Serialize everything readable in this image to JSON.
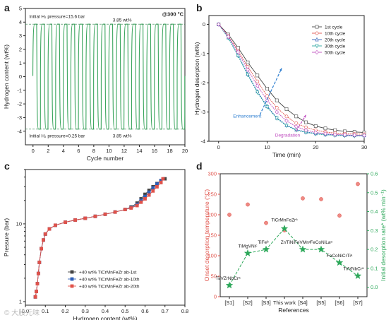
{
  "panels": [
    {
      "letter": "a",
      "chart_data": {
        "type": "line",
        "xlabel": "Cycle number",
        "ylabel": "Hydrogen content (wt%)",
        "xlim": [
          -1,
          20
        ],
        "ylim": [
          -5,
          5
        ],
        "xticks": [
          0,
          2,
          4,
          6,
          8,
          10,
          12,
          14,
          16,
          18,
          20
        ],
        "yticks": [
          -4,
          -3,
          -2,
          -1,
          0,
          1,
          2,
          3,
          4,
          5
        ],
        "series_color": "#3aa55d",
        "absorption_level": 3.85,
        "desorption_level": -3.85,
        "cycles": 20,
        "annotations": [
          {
            "text": "Initial H₂ pressure=15.6 bar",
            "x": -0.5,
            "y": 4.3
          },
          {
            "text": "3.85 wt%",
            "x": 10.5,
            "y": 4.05
          },
          {
            "text": "@300 °C",
            "x": 17.0,
            "y": 4.45
          },
          {
            "text": "Initial H₂ pressure=0.25 bar",
            "x": -0.5,
            "y": -4.45
          },
          {
            "text": "3.85 wt%",
            "x": 10.5,
            "y": -4.45
          }
        ]
      }
    },
    {
      "letter": "b",
      "chart_data": {
        "type": "line",
        "xlabel": "Time (min)",
        "ylabel": "Hydrogen desorption (wt%)",
        "xlim": [
          -2,
          30
        ],
        "ylim": [
          -4,
          0.3
        ],
        "xticks": [
          0,
          10,
          20,
          30
        ],
        "yticks": [
          -4,
          -3,
          -2,
          -1,
          0
        ],
        "legend_position": "top-right",
        "series": [
          {
            "name": "1st  cycle",
            "color": "#444444",
            "marker": "square",
            "x": [
              0,
              2,
              4,
              6,
              8,
              10,
              12,
              14,
              16,
              18,
              20,
              22,
              24,
              26,
              28,
              30
            ],
            "y": [
              0,
              -0.35,
              -0.8,
              -1.3,
              -1.75,
              -2.2,
              -2.6,
              -2.9,
              -3.15,
              -3.35,
              -3.48,
              -3.56,
              -3.62,
              -3.66,
              -3.68,
              -3.7
            ]
          },
          {
            "name": "10th cycle",
            "color": "#e0524a",
            "marker": "circle",
            "x": [
              0,
              2,
              4,
              6,
              8,
              10,
              12,
              14,
              16,
              18,
              20,
              22,
              24,
              26,
              28,
              30
            ],
            "y": [
              0,
              -0.4,
              -0.9,
              -1.45,
              -1.95,
              -2.45,
              -2.85,
              -3.15,
              -3.38,
              -3.52,
              -3.62,
              -3.68,
              -3.72,
              -3.74,
              -3.75,
              -3.76
            ]
          },
          {
            "name": "20th cycle",
            "color": "#2f5fb8",
            "marker": "triangle",
            "x": [
              0,
              2,
              4,
              6,
              8,
              10,
              12,
              14,
              16,
              18,
              20,
              22,
              24,
              26,
              28,
              30
            ],
            "y": [
              0,
              -0.45,
              -1.05,
              -1.7,
              -2.3,
              -2.8,
              -3.2,
              -3.45,
              -3.6,
              -3.68,
              -3.73,
              -3.76,
              -3.78,
              -3.79,
              -3.8,
              -3.8
            ]
          },
          {
            "name": "30th cycle",
            "color": "#2aa6a0",
            "marker": "triangle-down",
            "x": [
              0,
              2,
              4,
              6,
              8,
              10,
              12,
              14,
              16,
              18,
              20,
              22,
              24,
              26,
              28,
              30
            ],
            "y": [
              0,
              -0.47,
              -1.08,
              -1.73,
              -2.33,
              -2.83,
              -3.22,
              -3.47,
              -3.62,
              -3.7,
              -3.75,
              -3.78,
              -3.8,
              -3.81,
              -3.82,
              -3.82
            ]
          },
          {
            "name": "50th cycle",
            "color": "#c04fc0",
            "marker": "diamond",
            "x": [
              0,
              2,
              4,
              6,
              8,
              10,
              12,
              14,
              16,
              18,
              20,
              22,
              24,
              26,
              28,
              30
            ],
            "y": [
              0,
              -0.42,
              -0.95,
              -1.55,
              -2.1,
              -2.6,
              -3.0,
              -3.3,
              -3.5,
              -3.62,
              -3.7,
              -3.74,
              -3.77,
              -3.78,
              -3.79,
              -3.8
            ]
          }
        ],
        "annotations": [
          {
            "text": "Enhancement",
            "color": "#2f7fd0",
            "arrow_from": [
              8.5,
              -3.1
            ],
            "arrow_to": [
              13.0,
              -1.5
            ]
          },
          {
            "text": "Degradation",
            "color": "#c04fc0",
            "arrow_from": [
              16.0,
              -3.65
            ],
            "arrow_to": [
              18.0,
              -3.1
            ]
          }
        ]
      }
    },
    {
      "letter": "c",
      "chart_data": {
        "type": "scatter",
        "xlabel": "Hydrogen content (wt%)",
        "ylabel": "Pressure (bar)",
        "yscale": "log",
        "xlim": [
          0,
          0.8
        ],
        "ylim": [
          0.9,
          50
        ],
        "xticks": [
          0,
          0.1,
          0.2,
          0.3,
          0.4,
          0.5,
          0.6,
          0.7,
          0.8
        ],
        "xticklabels": [
          "0.0",
          "0.1",
          "0.2",
          "0.3",
          "0.4",
          "0.5",
          "0.6",
          "0.7",
          "0.8"
        ],
        "yticks": [
          1,
          10
        ],
        "legend_position": "bottom-right",
        "series": [
          {
            "name": "+40 wt% TiCrMnFeZr ab-1st",
            "color": "#444444",
            "marker": "square",
            "x": [
              0.05,
              0.055,
              0.06,
              0.065,
              0.07,
              0.08,
              0.09,
              0.1,
              0.12,
              0.15,
              0.2,
              0.25,
              0.3,
              0.35,
              0.4,
              0.45,
              0.5,
              0.53,
              0.56,
              0.58,
              0.6,
              0.62,
              0.64,
              0.66,
              0.68,
              0.7
            ],
            "y": [
              1.15,
              1.35,
              1.7,
              2.3,
              3.2,
              4.8,
              6.2,
              7.4,
              8.6,
              9.6,
              10.5,
              11.2,
              11.8,
              12.5,
              13.3,
              14.2,
              15.3,
              16.5,
              18.5,
              21,
              24,
              27,
              30,
              33,
              36,
              38
            ]
          },
          {
            "name": "+40 wt% TiCrMnFeZr ab-10th",
            "color": "#2f5fb8",
            "marker": "square",
            "x": [
              0.05,
              0.055,
              0.06,
              0.065,
              0.07,
              0.08,
              0.09,
              0.1,
              0.12,
              0.15,
              0.2,
              0.25,
              0.3,
              0.35,
              0.4,
              0.45,
              0.5,
              0.53,
              0.56,
              0.58,
              0.6,
              0.62,
              0.64,
              0.66,
              0.68
            ],
            "y": [
              1.15,
              1.35,
              1.7,
              2.3,
              3.2,
              4.8,
              6.2,
              7.4,
              8.6,
              9.6,
              10.5,
              11.2,
              11.8,
              12.5,
              13.3,
              14.2,
              15.3,
              16.2,
              17.8,
              20,
              22.5,
              25.5,
              29,
              32.5,
              36
            ]
          },
          {
            "name": "+40 wt% TiCrMnFeZr ab-20th",
            "color": "#e0524a",
            "marker": "square",
            "x": [
              0.05,
              0.055,
              0.06,
              0.065,
              0.07,
              0.08,
              0.09,
              0.1,
              0.12,
              0.15,
              0.2,
              0.25,
              0.3,
              0.35,
              0.4,
              0.45,
              0.5,
              0.53,
              0.56,
              0.58,
              0.6,
              0.62,
              0.64,
              0.66,
              0.68,
              0.69
            ],
            "y": [
              1.15,
              1.35,
              1.7,
              2.3,
              3.2,
              4.8,
              6.2,
              7.4,
              8.6,
              9.6,
              10.5,
              11.2,
              11.8,
              12.5,
              13.3,
              14.2,
              15.3,
              16,
              17.2,
              19,
              21,
              23.5,
              26.5,
              30,
              34,
              38
            ]
          }
        ]
      }
    },
    {
      "letter": "d",
      "chart_data": {
        "type": "scatter",
        "xlabel": "References",
        "ylabel_left": "Onset desorption temperature (°C)",
        "ylabel_right": "Initial desorption rate* (wt% min⁻¹)",
        "left_color": "#e0524a",
        "right_color": "#2da85a",
        "categories": [
          "[S1]",
          "[S2]",
          "[S3]",
          "This work",
          "[S4]",
          "[S5]",
          "[S6]",
          "[S7]"
        ],
        "ylim_left": [
          0,
          300
        ],
        "yticks_left": [
          0,
          50,
          100,
          150,
          200,
          250,
          300
        ],
        "ylim_right": [
          -0.05,
          0.6
        ],
        "yticks_right": [
          0.0,
          0.1,
          0.2,
          0.3,
          0.4,
          0.5,
          0.6
        ],
        "yticklabels_right": [
          "0.0",
          "0.1",
          "0.2",
          "0.3",
          "0.4",
          "0.5",
          "0.6"
        ],
        "onset_temperature": [
          200,
          225,
          180,
          162,
          240,
          238,
          198,
          275
        ],
        "desorption_rate": [
          0.01,
          0.18,
          0.2,
          0.31,
          0.2,
          0.2,
          0.13,
          0.06
        ],
        "point_labels": [
          "Ti/VZrNbCrᵃ",
          "TiMgVNiᶜ",
          "TiFeᵇ",
          "TiCrMnFeZrᵃ",
          "Zr/TiNiFeVMnᵃ",
          "FeCoNiLaᵃ",
          "FeCoNiCrTiᵃ",
          "Ti/VNbCrᵃ"
        ]
      }
    }
  ],
  "watermark": "© 大股元味"
}
